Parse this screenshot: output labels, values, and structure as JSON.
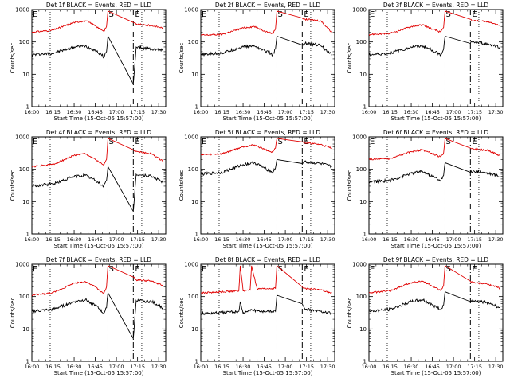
{
  "chart_data": {
    "type": "line",
    "ylabel": "Counts/sec",
    "xlabel": "Start Time (15-Oct-05 15:57:00)",
    "x_ticks": [
      "16:00",
      "16:15",
      "16:30",
      "16:45",
      "17:00",
      "17:15",
      "17:30"
    ],
    "y_ticks": [
      "1",
      "10",
      "100",
      "1000"
    ],
    "ylim": [
      1,
      1000
    ],
    "y_scale": "log",
    "grid": false,
    "colors": {
      "events": "#000000",
      "lld": "#e00000"
    },
    "markers": {
      "S": {
        "label": "S",
        "time": "16:54",
        "style": "dashed"
      },
      "E": {
        "label": "E",
        "time": "17:12",
        "style": "dash-dot"
      },
      "E_left": {
        "label": "E",
        "time": "16:00"
      }
    },
    "dotted_lines": [
      "16:13",
      "17:18"
    ],
    "panels": [
      {
        "title": "Det 1f BLACK = Events, RED = LLD",
        "lld": [
          {
            "t": "16:00",
            "v": 200
          },
          {
            "t": "16:15",
            "v": 230
          },
          {
            "t": "16:30",
            "v": 400
          },
          {
            "t": "16:38",
            "v": 450
          },
          {
            "t": "16:45",
            "v": 320
          },
          {
            "t": "16:51",
            "v": 210
          },
          {
            "t": "16:53",
            "v": 300
          },
          {
            "t": "16:54",
            "v": 900
          },
          {
            "t": "17:12",
            "v": 400
          },
          {
            "t": "17:14",
            "v": 350
          },
          {
            "t": "17:25",
            "v": 320
          },
          {
            "t": "17:33",
            "v": 270
          }
        ],
        "events": [
          {
            "t": "16:00",
            "v": 40
          },
          {
            "t": "16:15",
            "v": 45
          },
          {
            "t": "16:30",
            "v": 70
          },
          {
            "t": "16:38",
            "v": 75
          },
          {
            "t": "16:45",
            "v": 55
          },
          {
            "t": "16:51",
            "v": 35
          },
          {
            "t": "16:53",
            "v": 50
          },
          {
            "t": "16:54",
            "v": 150
          },
          {
            "t": "17:12",
            "v": 5
          },
          {
            "t": "17:14",
            "v": 70
          },
          {
            "t": "17:25",
            "v": 60
          },
          {
            "t": "17:33",
            "v": 55
          }
        ]
      },
      {
        "title": "Det 2f BLACK = Events, RED = LLD",
        "lld": [
          {
            "t": "16:00",
            "v": 160
          },
          {
            "t": "16:15",
            "v": 170
          },
          {
            "t": "16:30",
            "v": 270
          },
          {
            "t": "16:38",
            "v": 300
          },
          {
            "t": "16:45",
            "v": 220
          },
          {
            "t": "16:51",
            "v": 180
          },
          {
            "t": "16:53",
            "v": 250
          },
          {
            "t": "16:54",
            "v": 900
          },
          {
            "t": "17:12",
            "v": 550
          },
          {
            "t": "17:14",
            "v": 500
          },
          {
            "t": "17:25",
            "v": 450
          },
          {
            "t": "17:33",
            "v": 200
          }
        ],
        "events": [
          {
            "t": "16:00",
            "v": 40
          },
          {
            "t": "16:15",
            "v": 45
          },
          {
            "t": "16:30",
            "v": 70
          },
          {
            "t": "16:38",
            "v": 75
          },
          {
            "t": "16:45",
            "v": 55
          },
          {
            "t": "16:51",
            "v": 40
          },
          {
            "t": "16:53",
            "v": 60
          },
          {
            "t": "16:54",
            "v": 150
          },
          {
            "t": "17:12",
            "v": 80
          },
          {
            "t": "17:14",
            "v": 90
          },
          {
            "t": "17:25",
            "v": 80
          },
          {
            "t": "17:33",
            "v": 40
          }
        ]
      },
      {
        "title": "Det 3f BLACK = Events, RED = LLD",
        "lld": [
          {
            "t": "16:00",
            "v": 170
          },
          {
            "t": "16:15",
            "v": 180
          },
          {
            "t": "16:30",
            "v": 300
          },
          {
            "t": "16:38",
            "v": 340
          },
          {
            "t": "16:45",
            "v": 250
          },
          {
            "t": "16:51",
            "v": 200
          },
          {
            "t": "16:53",
            "v": 280
          },
          {
            "t": "16:54",
            "v": 900
          },
          {
            "t": "17:12",
            "v": 500
          },
          {
            "t": "17:14",
            "v": 450
          },
          {
            "t": "17:25",
            "v": 420
          },
          {
            "t": "17:33",
            "v": 320
          }
        ],
        "events": [
          {
            "t": "16:00",
            "v": 40
          },
          {
            "t": "16:15",
            "v": 45
          },
          {
            "t": "16:30",
            "v": 70
          },
          {
            "t": "16:38",
            "v": 75
          },
          {
            "t": "16:45",
            "v": 55
          },
          {
            "t": "16:51",
            "v": 40
          },
          {
            "t": "16:53",
            "v": 60
          },
          {
            "t": "16:54",
            "v": 150
          },
          {
            "t": "17:12",
            "v": 90
          },
          {
            "t": "17:14",
            "v": 100
          },
          {
            "t": "17:25",
            "v": 85
          },
          {
            "t": "17:33",
            "v": 70
          }
        ]
      },
      {
        "title": "Det 4f BLACK = Events, RED = LLD",
        "lld": [
          {
            "t": "16:00",
            "v": 120
          },
          {
            "t": "16:15",
            "v": 140
          },
          {
            "t": "16:30",
            "v": 270
          },
          {
            "t": "16:38",
            "v": 300
          },
          {
            "t": "16:45",
            "v": 200
          },
          {
            "t": "16:51",
            "v": 130
          },
          {
            "t": "16:53",
            "v": 200
          },
          {
            "t": "16:54",
            "v": 900
          },
          {
            "t": "17:12",
            "v": 400
          },
          {
            "t": "17:14",
            "v": 350
          },
          {
            "t": "17:25",
            "v": 300
          },
          {
            "t": "17:33",
            "v": 180
          }
        ],
        "events": [
          {
            "t": "16:00",
            "v": 30
          },
          {
            "t": "16:15",
            "v": 35
          },
          {
            "t": "16:30",
            "v": 60
          },
          {
            "t": "16:38",
            "v": 65
          },
          {
            "t": "16:45",
            "v": 45
          },
          {
            "t": "16:51",
            "v": 30
          },
          {
            "t": "16:53",
            "v": 45
          },
          {
            "t": "16:54",
            "v": 120
          },
          {
            "t": "17:12",
            "v": 5
          },
          {
            "t": "17:14",
            "v": 70
          },
          {
            "t": "17:25",
            "v": 60
          },
          {
            "t": "17:33",
            "v": 40
          }
        ]
      },
      {
        "title": "Det 5f BLACK = Events, RED = LLD",
        "lld": [
          {
            "t": "16:00",
            "v": 280
          },
          {
            "t": "16:15",
            "v": 300
          },
          {
            "t": "16:30",
            "v": 500
          },
          {
            "t": "16:38",
            "v": 560
          },
          {
            "t": "16:45",
            "v": 420
          },
          {
            "t": "16:51",
            "v": 330
          },
          {
            "t": "16:53",
            "v": 450
          },
          {
            "t": "16:54",
            "v": 900
          },
          {
            "t": "17:12",
            "v": 700
          },
          {
            "t": "17:14",
            "v": 650
          },
          {
            "t": "17:25",
            "v": 580
          },
          {
            "t": "17:33",
            "v": 450
          }
        ],
        "events": [
          {
            "t": "16:00",
            "v": 70
          },
          {
            "t": "16:15",
            "v": 80
          },
          {
            "t": "16:30",
            "v": 140
          },
          {
            "t": "16:38",
            "v": 160
          },
          {
            "t": "16:45",
            "v": 110
          },
          {
            "t": "16:51",
            "v": 80
          },
          {
            "t": "16:53",
            "v": 110
          },
          {
            "t": "16:54",
            "v": 200
          },
          {
            "t": "17:12",
            "v": 150
          },
          {
            "t": "17:14",
            "v": 170
          },
          {
            "t": "17:25",
            "v": 150
          },
          {
            "t": "17:33",
            "v": 120
          }
        ]
      },
      {
        "title": "Det 6f BLACK = Events, RED = LLD",
        "lld": [
          {
            "t": "16:00",
            "v": 200
          },
          {
            "t": "16:15",
            "v": 210
          },
          {
            "t": "16:30",
            "v": 350
          },
          {
            "t": "16:38",
            "v": 400
          },
          {
            "t": "16:45",
            "v": 300
          },
          {
            "t": "16:51",
            "v": 240
          },
          {
            "t": "16:53",
            "v": 320
          },
          {
            "t": "16:54",
            "v": 900
          },
          {
            "t": "17:12",
            "v": 450
          },
          {
            "t": "17:14",
            "v": 420
          },
          {
            "t": "17:25",
            "v": 380
          },
          {
            "t": "17:33",
            "v": 260
          }
        ],
        "events": [
          {
            "t": "16:00",
            "v": 40
          },
          {
            "t": "16:15",
            "v": 45
          },
          {
            "t": "16:30",
            "v": 75
          },
          {
            "t": "16:38",
            "v": 85
          },
          {
            "t": "16:45",
            "v": 60
          },
          {
            "t": "16:51",
            "v": 45
          },
          {
            "t": "16:53",
            "v": 65
          },
          {
            "t": "16:54",
            "v": 160
          },
          {
            "t": "17:12",
            "v": 80
          },
          {
            "t": "17:14",
            "v": 90
          },
          {
            "t": "17:25",
            "v": 75
          },
          {
            "t": "17:33",
            "v": 60
          }
        ]
      },
      {
        "title": "Det 7f BLACK = Events, RED = LLD",
        "lld": [
          {
            "t": "16:00",
            "v": 110
          },
          {
            "t": "16:15",
            "v": 130
          },
          {
            "t": "16:30",
            "v": 260
          },
          {
            "t": "16:38",
            "v": 290
          },
          {
            "t": "16:45",
            "v": 200
          },
          {
            "t": "16:51",
            "v": 120
          },
          {
            "t": "16:53",
            "v": 200
          },
          {
            "t": "16:54",
            "v": 900
          },
          {
            "t": "17:12",
            "v": 400
          },
          {
            "t": "17:14",
            "v": 330
          },
          {
            "t": "17:25",
            "v": 300
          },
          {
            "t": "17:33",
            "v": 220
          }
        ],
        "events": [
          {
            "t": "16:00",
            "v": 35
          },
          {
            "t": "16:15",
            "v": 40
          },
          {
            "t": "16:30",
            "v": 70
          },
          {
            "t": "16:38",
            "v": 80
          },
          {
            "t": "16:45",
            "v": 55
          },
          {
            "t": "16:51",
            "v": 30
          },
          {
            "t": "16:53",
            "v": 45
          },
          {
            "t": "16:54",
            "v": 130
          },
          {
            "t": "17:12",
            "v": 5
          },
          {
            "t": "17:14",
            "v": 75
          },
          {
            "t": "17:25",
            "v": 70
          },
          {
            "t": "17:33",
            "v": 45
          }
        ]
      },
      {
        "title": "Det 8f BLACK = Events, RED = LLD",
        "lld": [
          {
            "t": "16:00",
            "v": 130
          },
          {
            "t": "16:15",
            "v": 140
          },
          {
            "t": "16:27",
            "v": 150
          },
          {
            "t": "16:28",
            "v": 900
          },
          {
            "t": "16:30",
            "v": 150
          },
          {
            "t": "16:35",
            "v": 160
          },
          {
            "t": "16:36",
            "v": 900
          },
          {
            "t": "16:40",
            "v": 170
          },
          {
            "t": "16:53",
            "v": 180
          },
          {
            "t": "16:54",
            "v": 900
          },
          {
            "t": "17:12",
            "v": 200
          },
          {
            "t": "17:14",
            "v": 180
          },
          {
            "t": "17:25",
            "v": 160
          },
          {
            "t": "17:33",
            "v": 130
          }
        ],
        "events": [
          {
            "t": "16:00",
            "v": 30
          },
          {
            "t": "16:15",
            "v": 32
          },
          {
            "t": "16:27",
            "v": 35
          },
          {
            "t": "16:28",
            "v": 70
          },
          {
            "t": "16:30",
            "v": 30
          },
          {
            "t": "16:36",
            "v": 40
          },
          {
            "t": "16:40",
            "v": 35
          },
          {
            "t": "16:53",
            "v": 35
          },
          {
            "t": "16:54",
            "v": 110
          },
          {
            "t": "17:12",
            "v": 60
          },
          {
            "t": "17:14",
            "v": 40
          },
          {
            "t": "17:25",
            "v": 35
          },
          {
            "t": "17:33",
            "v": 30
          }
        ]
      },
      {
        "title": "Det 9f BLACK = Events, RED = LLD",
        "lld": [
          {
            "t": "16:00",
            "v": 130
          },
          {
            "t": "16:15",
            "v": 150
          },
          {
            "t": "16:30",
            "v": 270
          },
          {
            "t": "16:38",
            "v": 300
          },
          {
            "t": "16:45",
            "v": 210
          },
          {
            "t": "16:51",
            "v": 150
          },
          {
            "t": "16:53",
            "v": 220
          },
          {
            "t": "16:54",
            "v": 900
          },
          {
            "t": "17:12",
            "v": 300
          },
          {
            "t": "17:14",
            "v": 270
          },
          {
            "t": "17:25",
            "v": 240
          },
          {
            "t": "17:33",
            "v": 180
          }
        ],
        "events": [
          {
            "t": "16:00",
            "v": 35
          },
          {
            "t": "16:15",
            "v": 40
          },
          {
            "t": "16:30",
            "v": 70
          },
          {
            "t": "16:38",
            "v": 80
          },
          {
            "t": "16:45",
            "v": 55
          },
          {
            "t": "16:51",
            "v": 40
          },
          {
            "t": "16:53",
            "v": 55
          },
          {
            "t": "16:54",
            "v": 140
          },
          {
            "t": "17:12",
            "v": 70
          },
          {
            "t": "17:14",
            "v": 75
          },
          {
            "t": "17:25",
            "v": 65
          },
          {
            "t": "17:33",
            "v": 45
          }
        ]
      }
    ]
  }
}
